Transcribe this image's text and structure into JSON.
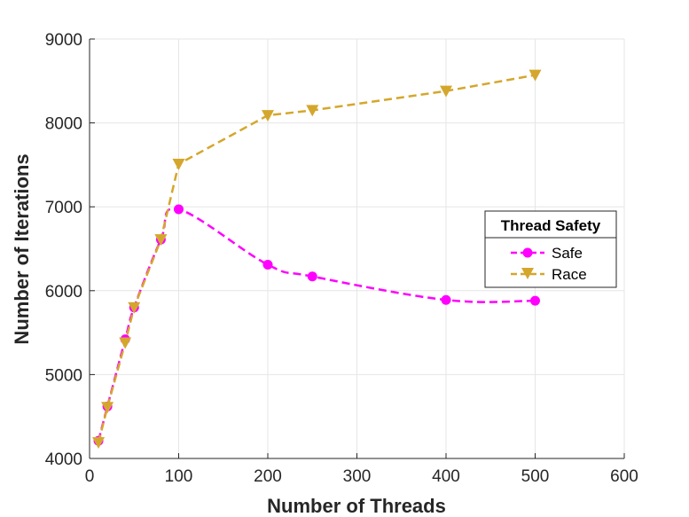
{
  "chart_data": {
    "type": "line",
    "title": "",
    "xlabel": "Number of Threads",
    "ylabel": "Number of Iterations",
    "xlim": [
      0,
      600
    ],
    "ylim": [
      4000,
      9000
    ],
    "xticks": [
      0,
      100,
      200,
      300,
      400,
      500,
      600
    ],
    "xtick_labels": [
      "0",
      "100",
      "200",
      "300",
      "400",
      "500",
      "600"
    ],
    "yticks": [
      4000,
      5000,
      6000,
      7000,
      8000,
      9000
    ],
    "ytick_labels": [
      "4000",
      "5000",
      "6000",
      "7000",
      "8000",
      "9000"
    ],
    "grid": true,
    "legend": {
      "title": "Thread Safety",
      "placement": "right"
    },
    "x": [
      10,
      20,
      40,
      50,
      80,
      100,
      200,
      250,
      400,
      500
    ],
    "series": [
      {
        "name": "Safe",
        "color": "#ff00ff",
        "marker": "circle",
        "line_style": "dashed",
        "values": [
          4210,
          4620,
          5420,
          5800,
          6610,
          6970,
          6310,
          6170,
          5890,
          5880
        ]
      },
      {
        "name": "Race",
        "color": "#d4a72c",
        "marker": "triangle-down",
        "line_style": "dashed",
        "values": [
          4190,
          4610,
          5380,
          5800,
          6610,
          7510,
          8090,
          8150,
          8380,
          8570
        ]
      }
    ]
  }
}
